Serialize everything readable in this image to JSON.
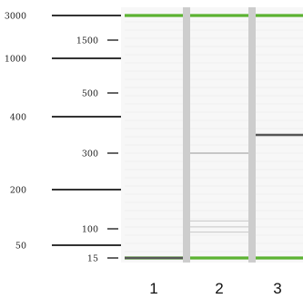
{
  "chart_data": {
    "type": "gel",
    "outer_ladder_bp": [
      3000,
      1000,
      400,
      200,
      50
    ],
    "inner_ladder_bp": [
      1500,
      500,
      300,
      100,
      15
    ],
    "lanes": [
      {
        "label": "1",
        "markers_bp": [
          3000,
          15
        ],
        "bands": [
          {
            "bp": 15,
            "intensity": "strong"
          }
        ]
      },
      {
        "label": "2",
        "markers_bp": [
          3000,
          15
        ],
        "bands": [
          {
            "bp": 300,
            "intensity": "weak"
          },
          {
            "bp": 120,
            "intensity": "faint"
          },
          {
            "bp": 105,
            "intensity": "faint"
          },
          {
            "bp": 90,
            "intensity": "faint"
          }
        ]
      },
      {
        "label": "3",
        "markers_bp": [
          3000,
          15
        ],
        "bands": [
          {
            "bp": 350,
            "intensity": "strong"
          }
        ]
      }
    ],
    "colors": {
      "background": "#f7f7f7",
      "gutter": "#cdcdcd",
      "marker": "#5cb232",
      "band": "#555555",
      "ladder_line": "#333333"
    }
  }
}
